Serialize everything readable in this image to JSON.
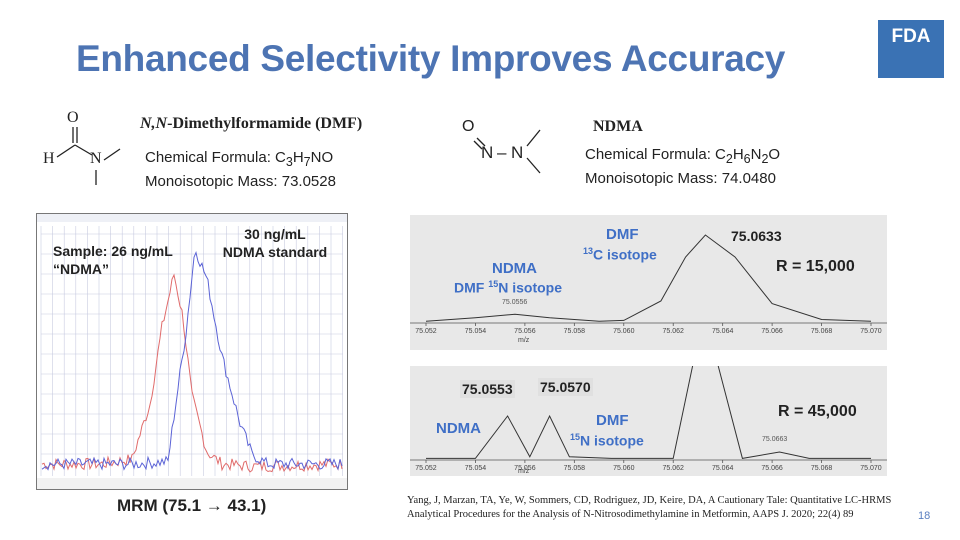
{
  "slide": {
    "title": "Enhanced Selectivity Improves Accuracy",
    "logo_text": "FDA",
    "slide_number": "18",
    "reference": "Yang, J, Marzan, TA, Ye, W, Sommers, CD, Rodriguez, JD, Keire, DA, A Cautionary Tale: Quantitative LC-HRMS Analytical Procedures for the Analysis of N-Nitrosodimethylamine in Metformin, AAPS J. 2020; 22(4) 89"
  },
  "colors": {
    "title": "#4d74b3",
    "logo_bg": "#3a72b4",
    "label_blue": "#3f6fc6",
    "trace_red": "#e06b6b",
    "trace_blue": "#5b63d6",
    "spectrum_bg": "#e8e8e8"
  },
  "dmf": {
    "name_italic": "N,N",
    "name_rest": "-Dimethylformamide (DMF)",
    "formula_prefix": "Chemical Formula: C",
    "formula_sub1": "3",
    "formula_h": "H",
    "formula_sub2": "7",
    "formula_rest": "NO",
    "mass": "Monoisotopic Mass: 73.0528",
    "atoms": {
      "o": "O",
      "h": "H",
      "n": "N"
    }
  },
  "ndma": {
    "name": "NDMA",
    "formula_prefix": "Chemical Formula: C",
    "formula_sub1": "2",
    "formula_h": "H",
    "formula_sub2": "6",
    "formula_n": "N",
    "formula_sub3": "2",
    "formula_rest": "O",
    "mass": "Monoisotopic Mass: 74.0480",
    "atoms": {
      "o": "O",
      "n1": "N",
      "dash": "–",
      "n2": "N"
    }
  },
  "chromatogram": {
    "sample_label_1": "Sample: 26 ng/mL",
    "sample_label_2": "“NDMA”",
    "standard_label_1": "30 ng/mL",
    "standard_label_2": "NDMA standard",
    "caption": "MRM (75.1 → 43.1)"
  },
  "spectrum_top": {
    "label_ndma": "NDMA",
    "label_dmf15_prefix": "DMF ",
    "label_dmf15_sup": "15",
    "label_dmf15_rest": "N isotope",
    "label_dmf": "DMF",
    "label_13c_sup": "13",
    "label_13c_rest": "C isotope",
    "peak_label": "75.0633",
    "small_peak_label": "75.0556",
    "resolution": "R = 15,000",
    "xlabel": "m/z"
  },
  "spectrum_bottom": {
    "peak_label_1": "75.0553",
    "peak_label_2": "75.0570",
    "label_ndma": "NDMA",
    "label_dmf": "DMF",
    "label_15n_sup": "15",
    "label_15n_rest": "N isotope",
    "small_peak_label": "75.0663",
    "resolution": "R = 45,000",
    "xlabel": "m/z"
  },
  "chart_data": [
    {
      "type": "line",
      "title": "MRM (75.1 → 43.1)",
      "series": [
        {
          "name": "Sample: 26 ng/mL “NDMA”",
          "x": [
            0,
            0.2,
            0.3,
            0.36,
            0.4,
            0.44,
            0.47,
            0.5,
            0.55,
            0.6,
            0.7,
            1.0
          ],
          "y": [
            0.05,
            0.05,
            0.07,
            0.3,
            0.62,
            0.84,
            0.66,
            0.33,
            0.1,
            0.05,
            0.04,
            0.05
          ]
        },
        {
          "name": "30 ng/mL NDMA standard",
          "x": [
            0,
            0.3,
            0.42,
            0.44,
            0.48,
            0.51,
            0.55,
            0.6,
            0.66,
            0.7,
            0.75,
            1.0
          ],
          "y": [
            0.05,
            0.05,
            0.06,
            0.25,
            0.6,
            0.95,
            0.82,
            0.5,
            0.22,
            0.09,
            0.05,
            0.05
          ]
        }
      ]
    },
    {
      "type": "line",
      "resolution": "R = 15,000",
      "xlabel": "m/z",
      "x_ticks": [
        "75.052",
        "75.054",
        "75.056",
        "75.058",
        "75.060",
        "75.062",
        "75.064",
        "75.066",
        "75.068",
        "75.070"
      ],
      "xlim": [
        75.052,
        75.07
      ],
      "x": [
        75.052,
        75.054,
        75.0556,
        75.057,
        75.059,
        75.06,
        75.0615,
        75.0625,
        75.0633,
        75.0645,
        75.066,
        75.068,
        75.07
      ],
      "y": [
        0.02,
        0.06,
        0.1,
        0.06,
        0.02,
        0.03,
        0.25,
        0.75,
        1.0,
        0.75,
        0.22,
        0.04,
        0.02
      ],
      "annotations": [
        "75.0633",
        "75.0556"
      ]
    },
    {
      "type": "line",
      "resolution": "R = 45,000",
      "xlabel": "m/z",
      "x_ticks": [
        "75.052",
        "75.054",
        "75.056",
        "75.058",
        "75.060",
        "75.062",
        "75.064",
        "75.066",
        "75.068",
        "75.070"
      ],
      "xlim": [
        75.052,
        75.07
      ],
      "x": [
        75.052,
        75.054,
        75.0553,
        75.0562,
        75.057,
        75.0578,
        75.0595,
        75.062,
        75.0628,
        75.0633,
        75.0638,
        75.0648,
        75.0663,
        75.0675,
        75.07
      ],
      "y": [
        0.02,
        0.02,
        0.55,
        0.04,
        0.55,
        0.04,
        0.02,
        0.02,
        1.2,
        1.2,
        1.2,
        0.02,
        0.1,
        0.02,
        0.02
      ],
      "annotations": [
        "75.0553",
        "75.0570",
        "75.0663"
      ]
    }
  ]
}
